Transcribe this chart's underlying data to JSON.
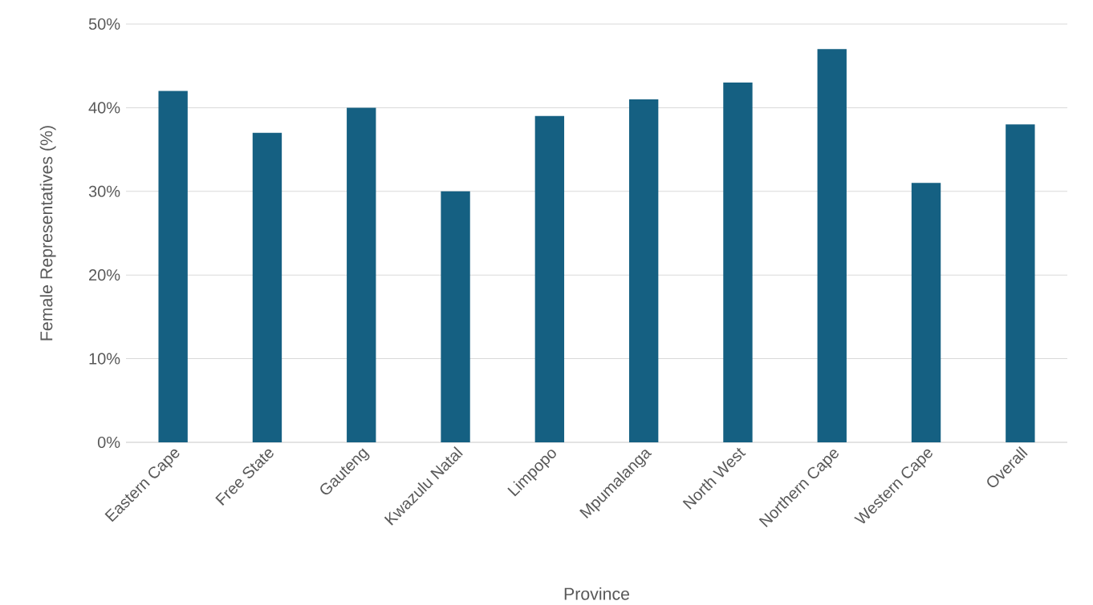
{
  "chart_data": {
    "type": "bar",
    "xlabel": "Province",
    "ylabel": "Female Representatives (%)",
    "categories": [
      "Eastern Cape",
      "Free State",
      "Gauteng",
      "Kwazulu Natal",
      "Limpopo",
      "Mpumalanga",
      "North West",
      "Northern Cape",
      "Western Cape",
      "Overall"
    ],
    "values": [
      42,
      37,
      40,
      30,
      39,
      41,
      43,
      47,
      31,
      38
    ],
    "color": "#156082",
    "ylim": [
      0,
      50
    ],
    "yticks": [
      {
        "value": 0,
        "label": "0%"
      },
      {
        "value": 10,
        "label": "10%"
      },
      {
        "value": 20,
        "label": "20%"
      },
      {
        "value": 30,
        "label": "30%"
      },
      {
        "value": 40,
        "label": "40%"
      },
      {
        "value": 50,
        "label": "50%"
      }
    ],
    "grid": "y"
  }
}
